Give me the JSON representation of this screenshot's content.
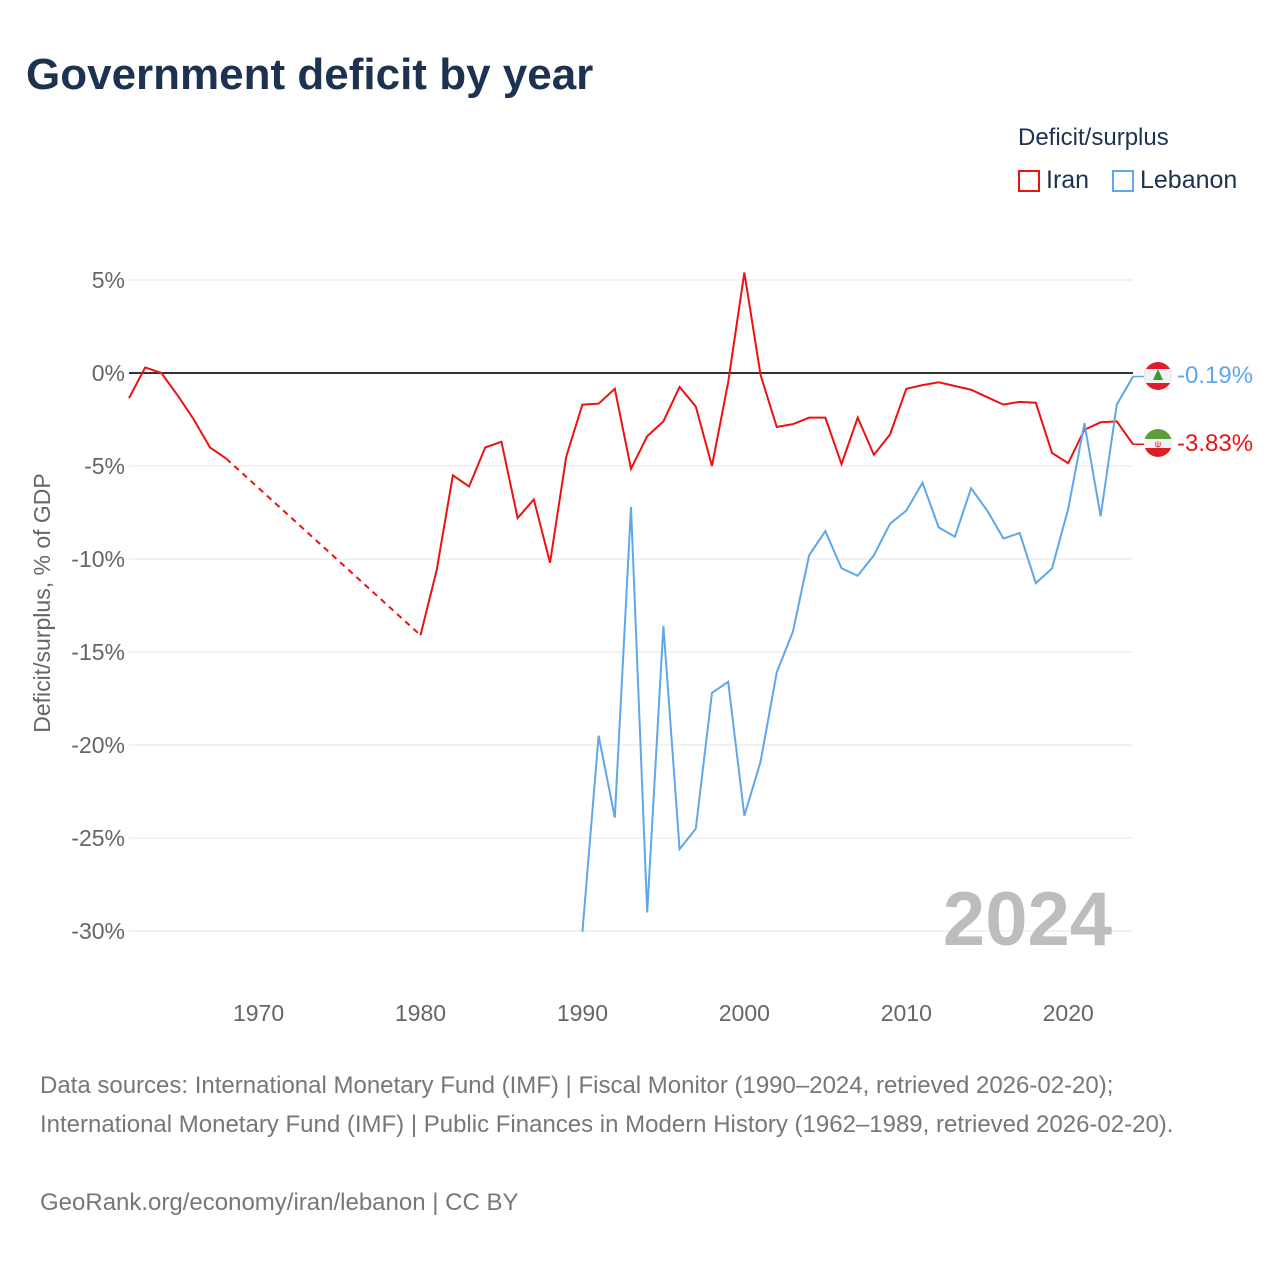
{
  "title": "Government deficit by year",
  "legend": {
    "title": "Deficit/surplus",
    "items": [
      "Iran",
      "Lebanon"
    ]
  },
  "colors": {
    "Iran": "#ee1111",
    "Lebanon": "#5fa6ea"
  },
  "footer": {
    "sources": "Data sources: International Monetary Fund (IMF) | Fiscal Monitor (1990–2024, retrieved 2026-02-20); International Monetary Fund (IMF) | Public Finances in Modern History (1962–1989, retrieved 2026-02-20).",
    "credit": "GeoRank.org/economy/iran/lebanon | CC BY"
  },
  "chart_data": {
    "type": "line",
    "ylabel": "Deficit/surplus, % of GDP",
    "xlim": [
      1962,
      2024
    ],
    "ylim": [
      -30,
      5
    ],
    "yticks": [
      5,
      0,
      -5,
      -10,
      -15,
      -20,
      -25,
      -30
    ],
    "ytick_labels": [
      "5%",
      "0%",
      "-5%",
      "-10%",
      "-15%",
      "-20%",
      "-25%",
      "-30%"
    ],
    "xticks": [
      1970,
      1980,
      1990,
      2000,
      2010,
      2020
    ],
    "year_label": "2024",
    "series": [
      {
        "name": "Iran",
        "start": 1962,
        "end_label": "-3.83%",
        "values": [
          -1.35,
          0.3,
          0,
          -1.2,
          -2.5,
          -4.0,
          -4.6,
          null,
          null,
          null,
          null,
          null,
          null,
          null,
          null,
          null,
          null,
          null,
          -14.1,
          -10.6,
          -5.5,
          -6.1,
          -4.0,
          -3.7,
          -7.8,
          -6.8,
          -10.2,
          -4.5,
          -1.7,
          -1.65,
          -0.85,
          -5.15,
          -3.4,
          -2.6,
          -0.75,
          -1.8,
          -5.0,
          -0.5,
          5.4,
          -0.1,
          -2.9,
          -2.75,
          -2.4,
          -2.4,
          -4.9,
          -2.4,
          -4.4,
          -3.3,
          -0.85,
          -0.65,
          -0.5,
          -0.7,
          -0.9,
          -1.3,
          -1.7,
          -1.55,
          -1.6,
          -4.3,
          -4.85,
          -3.05,
          -2.65,
          -2.6,
          -3.83
        ]
      },
      {
        "name": "Lebanon",
        "start": 1990,
        "end_label": "-0.19%",
        "values": [
          -30.05,
          -19.5,
          -23.9,
          -7.2,
          -29.0,
          -13.6,
          -25.6,
          -24.5,
          -17.2,
          -16.6,
          -23.8,
          -20.9,
          -16.1,
          -13.9,
          -9.8,
          -8.5,
          -10.5,
          -10.9,
          -9.8,
          -8.1,
          -7.4,
          -5.9,
          -8.3,
          -8.8,
          -6.2,
          -7.4,
          -8.9,
          -8.6,
          -11.3,
          -10.5,
          -7.3,
          -2.7,
          -7.7,
          -1.7,
          -0.19
        ]
      }
    ]
  }
}
